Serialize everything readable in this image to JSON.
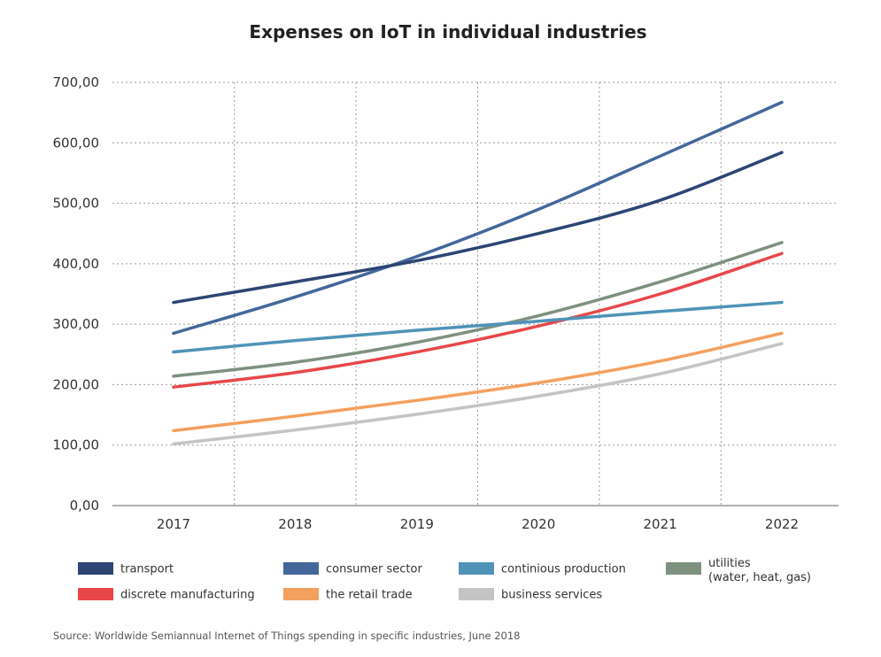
{
  "chart_data": {
    "type": "line",
    "title": "Expenses on IoT in individual industries",
    "xlabel": "",
    "ylabel": "",
    "categories": [
      "2017",
      "2018",
      "2019",
      "2020",
      "2021",
      "2022"
    ],
    "ylim": [
      0,
      700
    ],
    "yticks": [
      "0,00",
      "100,00",
      "200,00",
      "300,00",
      "400,00",
      "500,00",
      "600,00",
      "700,00"
    ],
    "grid": true,
    "legend_position": "bottom",
    "series": [
      {
        "name": "transport",
        "color": "#2c4574",
        "values": [
          336,
          370,
          405,
          450,
          505,
          584
        ]
      },
      {
        "name": "consumer sector",
        "color": "#44679b",
        "values": [
          285,
          345,
          412,
          490,
          578,
          667
        ]
      },
      {
        "name": "continious production",
        "color": "#4f93b8",
        "values": [
          254,
          273,
          290,
          305,
          321,
          336
        ]
      },
      {
        "name": "utilities",
        "name_line2": "(water, heat, gas)",
        "color": "#7e917f",
        "values": [
          214,
          237,
          270,
          314,
          370,
          435
        ]
      },
      {
        "name": "discrete manufacturing",
        "color": "#e8474a",
        "values": [
          196,
          220,
          254,
          297,
          350,
          417
        ]
      },
      {
        "name": "the retail trade",
        "color": "#f4a05e",
        "values": [
          124,
          148,
          174,
          203,
          239,
          285
        ]
      },
      {
        "name": "business services",
        "color": "#c4c4c4",
        "values": [
          102,
          125,
          151,
          181,
          218,
          268
        ]
      }
    ],
    "source": "Source: Worldwide Semiannual Internet of Things spending in specific industries, June 2018"
  }
}
